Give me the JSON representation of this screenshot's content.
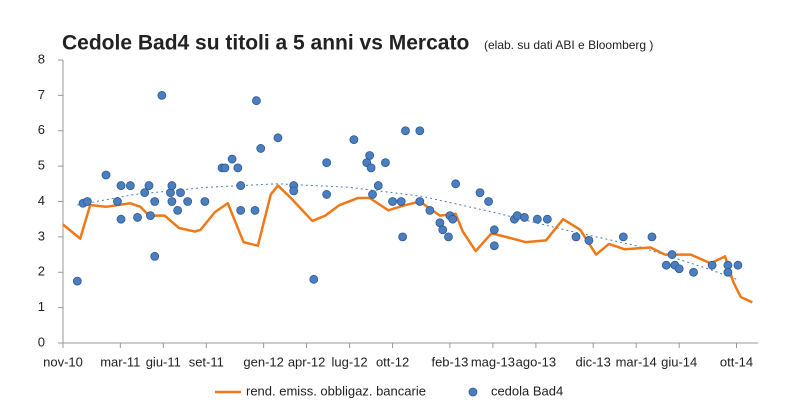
{
  "chart_data": {
    "type": "line-scatter",
    "title": "Cedole Bad4 su titoli a 5 anni vs Mercato",
    "subtitle": "(elab. su dati ABI e Bloomberg )",
    "xlim": [
      0,
      48.5
    ],
    "xticks": [
      {
        "value": 0,
        "label": "nov-10"
      },
      {
        "value": 4,
        "label": "mar-11"
      },
      {
        "value": 7,
        "label": "giu-11"
      },
      {
        "value": 10,
        "label": "set-11"
      },
      {
        "value": 14,
        "label": "gen-12"
      },
      {
        "value": 17,
        "label": "apr-12"
      },
      {
        "value": 20,
        "label": "lug-12"
      },
      {
        "value": 23,
        "label": "ott-12"
      },
      {
        "value": 27,
        "label": "feb-13"
      },
      {
        "value": 30,
        "label": "mag-13"
      },
      {
        "value": 33,
        "label": "ago-13"
      },
      {
        "value": 37,
        "label": "dic-13"
      },
      {
        "value": 40,
        "label": "mar-14"
      },
      {
        "value": 43,
        "label": "giu-14"
      },
      {
        "value": 47,
        "label": "ott-14"
      }
    ],
    "ylim": [
      0,
      8
    ],
    "yticks": [
      0,
      1,
      2,
      3,
      4,
      5,
      6,
      7,
      8
    ],
    "grid": false,
    "legend": "bottom",
    "series": [
      {
        "name": "rend. emiss. obbligaz. bancarie",
        "type": "line",
        "color": "#f07818",
        "x": [
          0,
          1.2,
          1.9,
          3,
          4.7,
          5.4,
          6,
          7.1,
          8.1,
          9.2,
          9.6,
          10.6,
          11.5,
          12.6,
          13.6,
          14.5,
          15.0,
          15.9,
          17.4,
          18.3,
          19.3,
          20.6,
          21.4,
          22.7,
          23.9,
          24.9,
          26.3,
          27.4,
          27.9,
          28.8,
          29.9,
          30.9,
          32.3,
          33.7,
          34.9,
          36.1,
          37.2,
          38.1,
          39.2,
          41.0,
          42.0,
          43.8,
          45.2,
          46.2,
          46.8,
          47.3,
          48.1
        ],
        "values": [
          3.35,
          2.95,
          3.9,
          3.85,
          3.95,
          3.85,
          3.6,
          3.6,
          3.25,
          3.15,
          3.2,
          3.7,
          3.95,
          2.85,
          2.75,
          4.2,
          4.45,
          4.1,
          3.45,
          3.6,
          3.9,
          4.1,
          4.1,
          3.75,
          3.9,
          4.0,
          3.6,
          3.65,
          3.15,
          2.6,
          3.1,
          3.0,
          2.85,
          2.9,
          3.5,
          3.2,
          2.5,
          2.8,
          2.65,
          2.7,
          2.5,
          2.5,
          2.25,
          2.45,
          1.7,
          1.3,
          1.15
        ]
      },
      {
        "name": "cedola Bad4",
        "type": "scatter",
        "color": "#4a7ec0",
        "x": [
          1.0,
          1.4,
          1.7,
          3.0,
          3.8,
          4.05,
          4.05,
          4.7,
          5.2,
          5.7,
          6.0,
          6.1,
          6.4,
          6.4,
          6.9,
          7.5,
          7.6,
          7.6,
          8.0,
          8.2,
          8.7,
          9.9,
          11.1,
          11.3,
          11.8,
          12.2,
          12.4,
          12.4,
          13.4,
          13.5,
          13.8,
          15.0,
          16.1,
          16.1,
          17.5,
          18.4,
          18.4,
          20.3,
          21.2,
          21.4,
          21.5,
          21.6,
          22.0,
          22.5,
          23.0,
          23.6,
          23.7,
          23.9,
          24.9,
          24.9,
          25.6,
          26.3,
          26.5,
          26.9,
          27.0,
          27.2,
          27.4,
          29.1,
          29.7,
          30.1,
          30.1,
          31.5,
          31.7,
          32.2,
          33.1,
          33.8,
          35.8,
          36.7,
          39.1,
          41.1,
          42.1,
          42.5,
          42.7,
          43.0,
          44.0,
          45.3,
          46.4,
          46.4,
          47.1
        ],
        "values": [
          1.75,
          3.95,
          4.0,
          4.75,
          4.0,
          3.5,
          4.45,
          4.45,
          3.55,
          4.25,
          4.45,
          3.6,
          4.0,
          2.45,
          7.0,
          4.25,
          4.45,
          4.0,
          3.75,
          4.25,
          4.0,
          4.0,
          4.95,
          4.95,
          5.2,
          4.95,
          4.45,
          3.75,
          3.75,
          6.85,
          5.5,
          5.8,
          4.45,
          4.3,
          1.8,
          5.1,
          4.2,
          5.75,
          5.1,
          5.3,
          4.95,
          4.2,
          4.45,
          5.1,
          4.0,
          4.0,
          3.0,
          6.0,
          6.0,
          4.0,
          3.75,
          3.4,
          3.2,
          3.0,
          3.6,
          3.5,
          4.5,
          4.25,
          4.0,
          3.2,
          2.75,
          3.5,
          3.6,
          3.55,
          3.5,
          3.5,
          3.0,
          2.9,
          3.0,
          3.0,
          2.2,
          2.5,
          2.2,
          2.1,
          2.0,
          2.2,
          2.2,
          2.0,
          2.2
        ]
      }
    ],
    "trendline": {
      "color": "#4a7ec0",
      "dashed": true,
      "x": [
        1,
        5,
        10,
        15,
        20,
        25,
        30,
        35,
        40,
        45,
        47
      ],
      "values": [
        3.9,
        4.2,
        4.4,
        4.5,
        4.4,
        4.15,
        3.7,
        3.2,
        2.75,
        2.1,
        1.8
      ]
    }
  }
}
